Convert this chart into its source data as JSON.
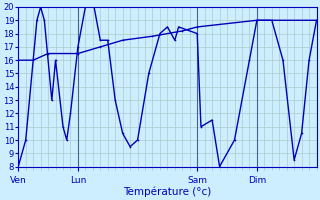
{
  "background_color": "#cceeff",
  "grid_color": "#aacccc",
  "line_color": "#0000bb",
  "xlabel": "Température (°c)",
  "ylim": [
    8,
    20
  ],
  "yticks": [
    8,
    9,
    10,
    11,
    12,
    13,
    14,
    15,
    16,
    17,
    18,
    19,
    20
  ],
  "day_labels": [
    "Ven",
    "Lun",
    "Sam",
    "Dim"
  ],
  "day_positions": [
    0,
    8,
    24,
    32
  ],
  "total_points": 40,
  "line1_x": [
    0,
    1,
    2.5,
    3,
    3.5,
    4.5,
    5,
    6,
    6.5,
    7,
    8,
    9,
    10,
    11,
    12,
    13,
    14,
    15,
    16,
    17.5,
    19,
    20,
    21,
    21.5,
    24,
    24.5,
    26,
    27,
    29,
    31,
    32,
    34,
    35.5,
    37,
    38,
    39,
    40
  ],
  "line1_y": [
    8,
    10,
    19,
    20,
    19,
    13,
    16,
    11,
    10,
    12,
    17,
    20,
    20.5,
    17.5,
    17.5,
    13,
    10.5,
    9.5,
    10,
    15,
    18,
    18.5,
    17.5,
    18.5,
    18,
    11,
    11.5,
    8,
    10,
    16,
    19,
    19,
    16,
    8.5,
    10.5,
    16,
    19
  ],
  "line2_x": [
    0,
    2,
    4,
    8,
    11,
    14,
    18,
    22,
    24,
    32,
    40
  ],
  "line2_y": [
    16,
    16,
    16.5,
    16.5,
    17,
    17.5,
    17.8,
    18.2,
    18.5,
    19,
    19
  ],
  "vline_positions": [
    8,
    24,
    32
  ],
  "marker_size": 2.5,
  "linewidth": 1.0
}
